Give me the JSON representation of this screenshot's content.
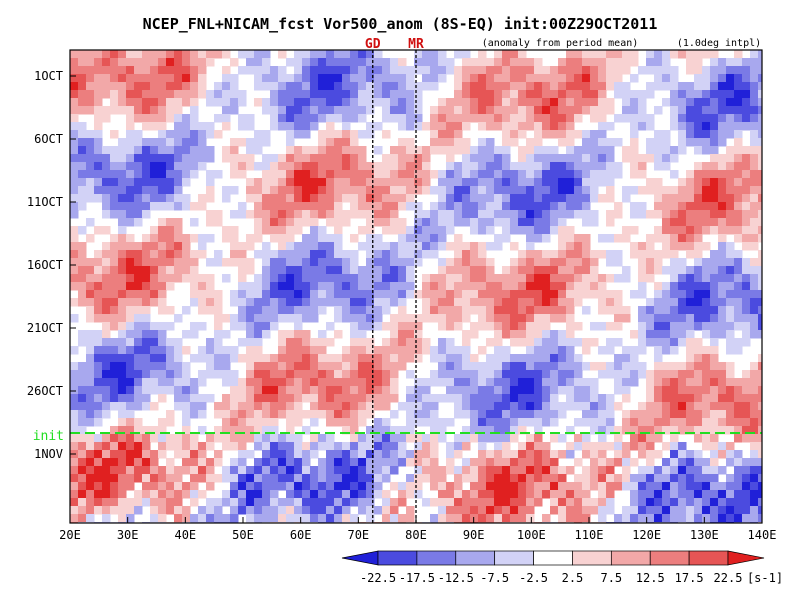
{
  "chart_data": {
    "type": "heatmap",
    "title": "NCEP_FNL+NICAM_fcst Vor500_anom (8S-EQ) init:00Z29OCT2011",
    "subtitle_left": "(anomaly from period mean)",
    "subtitle_right": "(1.0deg intpl)",
    "x_ticks": [
      "20E",
      "30E",
      "40E",
      "50E",
      "60E",
      "70E",
      "80E",
      "90E",
      "100E",
      "110E",
      "120E",
      "130E",
      "140E"
    ],
    "y_ticks": [
      "1OCT",
      "6OCT",
      "11OCT",
      "16OCT",
      "21OCT",
      "26OCT",
      "1NOV"
    ],
    "xlim": [
      20,
      140
    ],
    "markers": [
      {
        "label": "GD",
        "lon": 72.5
      },
      {
        "label": "MR",
        "lon": 80
      }
    ],
    "init_label": "init",
    "init_date": "29OCT2011",
    "colorbar": {
      "levels": [
        "-22.5",
        "-17.5",
        "-12.5",
        "-7.5",
        "-2.5",
        "2.5",
        "7.5",
        "12.5",
        "17.5",
        "22.5"
      ],
      "unit": "[s-1]",
      "colors": [
        "#2020d8",
        "#4b4bdf",
        "#7a7ae6",
        "#a8a8ee",
        "#d2d2f6",
        "#ffffff",
        "#f8d2d2",
        "#f2a8a8",
        "#ec7e7e",
        "#e65555",
        "#e02020"
      ]
    }
  }
}
